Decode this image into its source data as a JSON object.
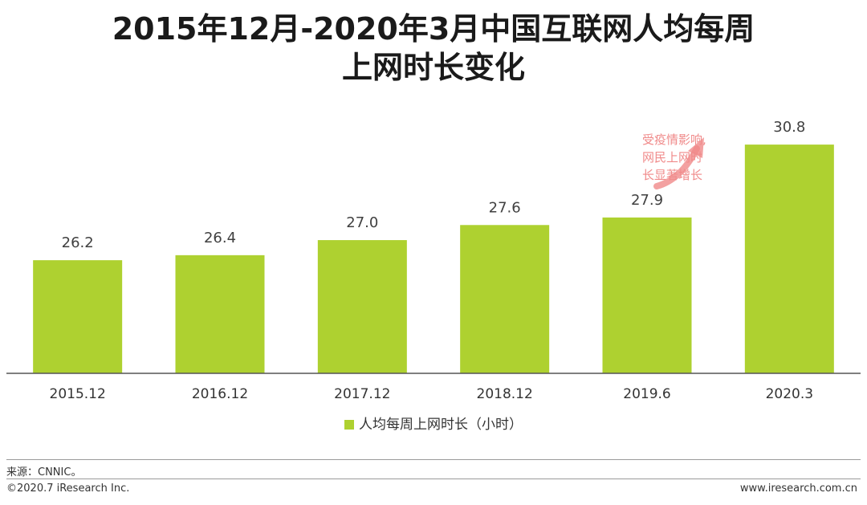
{
  "title_line1": "2015年12月-2020年3月中国互联网人均每周",
  "title_line2": "上网时长变化",
  "chart_data": {
    "type": "bar",
    "categories": [
      "2015.12",
      "2016.12",
      "2017.12",
      "2018.12",
      "2019.6",
      "2020.3"
    ],
    "series": [
      {
        "name": "人均每周上网时长（小时）",
        "values": [
          26.2,
          26.4,
          27.0,
          27.6,
          27.9,
          30.8
        ]
      }
    ],
    "value_labels": [
      "26.2",
      "26.4",
      "27.0",
      "27.6",
      "27.9",
      "30.8"
    ],
    "ylim": [
      21.7,
      32.4
    ],
    "legend_position": "bottom",
    "annotation": {
      "lines": [
        "受疫情影响,",
        "网民上网时",
        "长显著增长"
      ],
      "color": "#f08a8a"
    },
    "bar_color": "#aed130"
  },
  "legend": {
    "label": "人均每周上网时长（小时）",
    "color": "#aed130"
  },
  "footer": {
    "source": "来源：CNNIC。",
    "copyright": "©2020.7 iResearch Inc.",
    "website": "www.iresearch.com.cn"
  }
}
